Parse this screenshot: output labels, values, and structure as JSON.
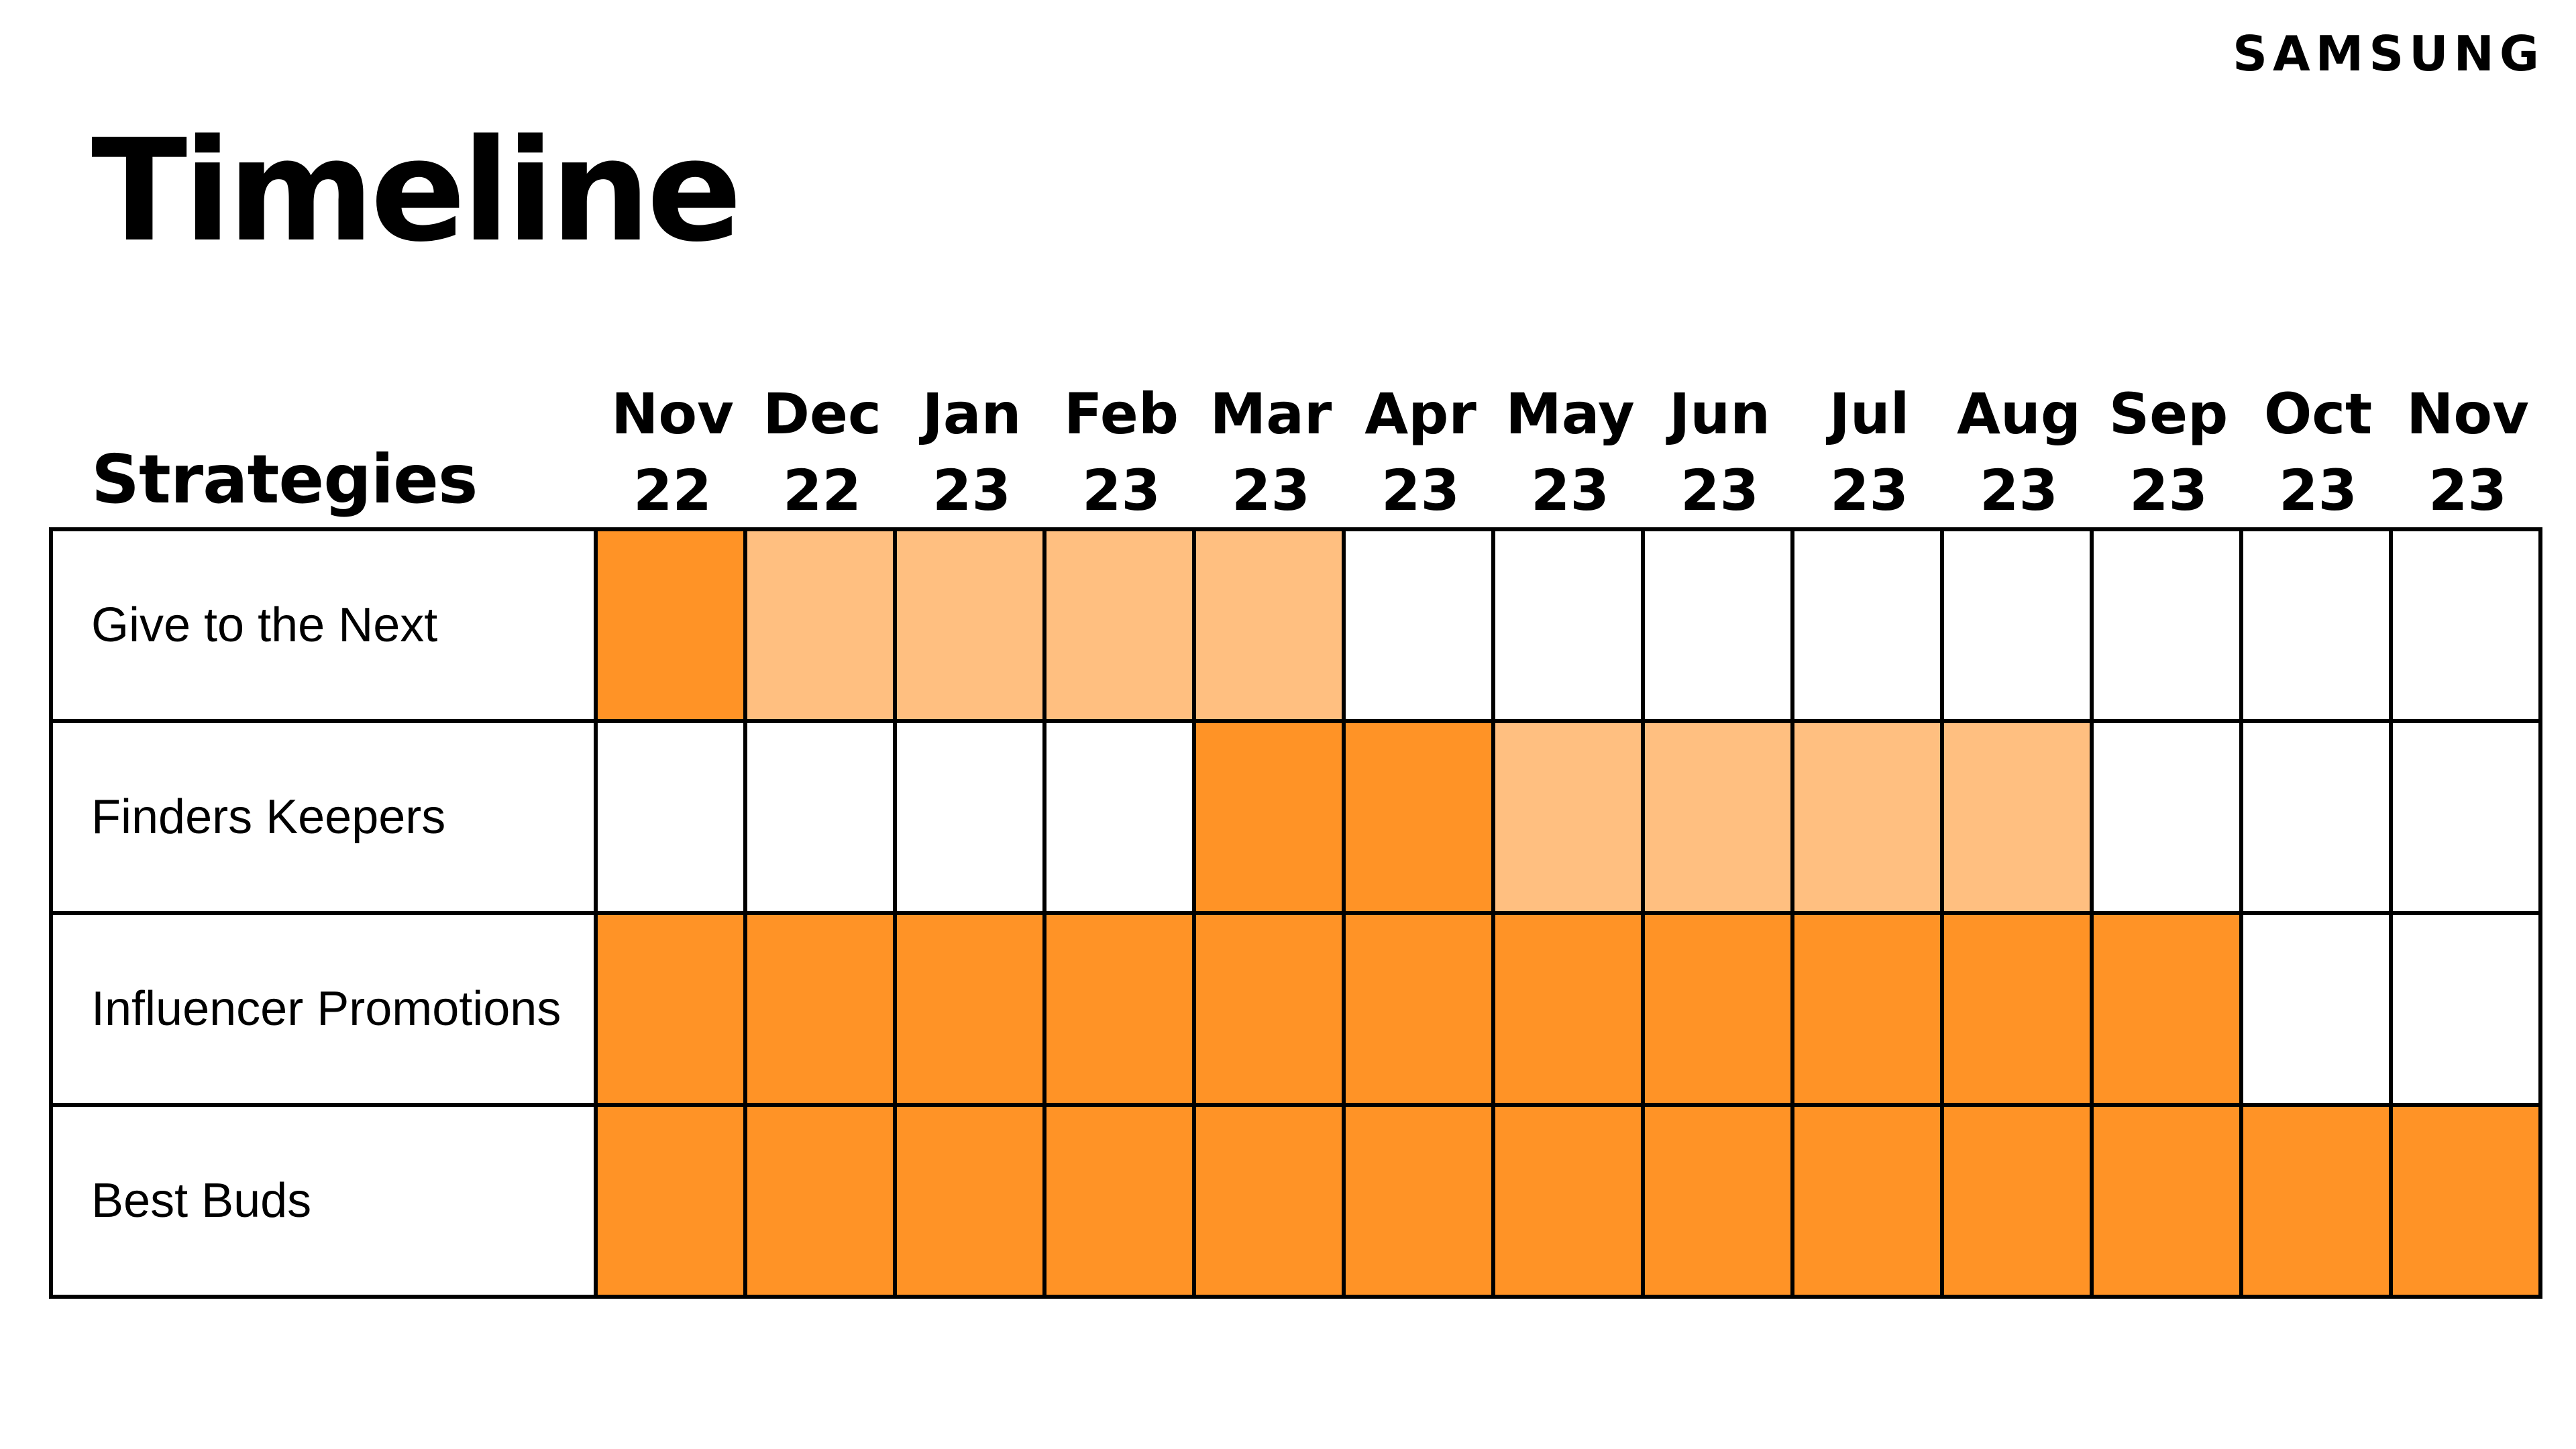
{
  "logo": "SAMSUNG",
  "title": "Timeline",
  "strategies_header": "Strategies",
  "colors": {
    "primary": "#FF9326",
    "light": "#FFBF80",
    "none": "#FFFFFF",
    "border": "#000000"
  },
  "months": [
    {
      "month": "Nov",
      "year": "22"
    },
    {
      "month": "Dec",
      "year": "22"
    },
    {
      "month": "Jan",
      "year": "23"
    },
    {
      "month": "Feb",
      "year": "23"
    },
    {
      "month": "Mar",
      "year": "23"
    },
    {
      "month": "Apr",
      "year": "23"
    },
    {
      "month": "May",
      "year": "23"
    },
    {
      "month": "Jun",
      "year": "23"
    },
    {
      "month": "Jul",
      "year": "23"
    },
    {
      "month": "Aug",
      "year": "23"
    },
    {
      "month": "Sep",
      "year": "23"
    },
    {
      "month": "Oct",
      "year": "23"
    },
    {
      "month": "Nov",
      "year": "23"
    }
  ],
  "strategies": [
    {
      "name": "Give to the Next",
      "cells": [
        2,
        1,
        1,
        1,
        1,
        0,
        0,
        0,
        0,
        0,
        0,
        0,
        0
      ]
    },
    {
      "name": "Finders Keepers",
      "cells": [
        0,
        0,
        0,
        0,
        2,
        2,
        1,
        1,
        1,
        1,
        0,
        0,
        0
      ]
    },
    {
      "name": "Influencer Promotions",
      "cells": [
        2,
        2,
        2,
        2,
        2,
        2,
        2,
        2,
        2,
        2,
        2,
        0,
        0
      ]
    },
    {
      "name": "Best Buds",
      "cells": [
        2,
        2,
        2,
        2,
        2,
        2,
        2,
        2,
        2,
        2,
        2,
        2,
        2
      ]
    }
  ]
}
